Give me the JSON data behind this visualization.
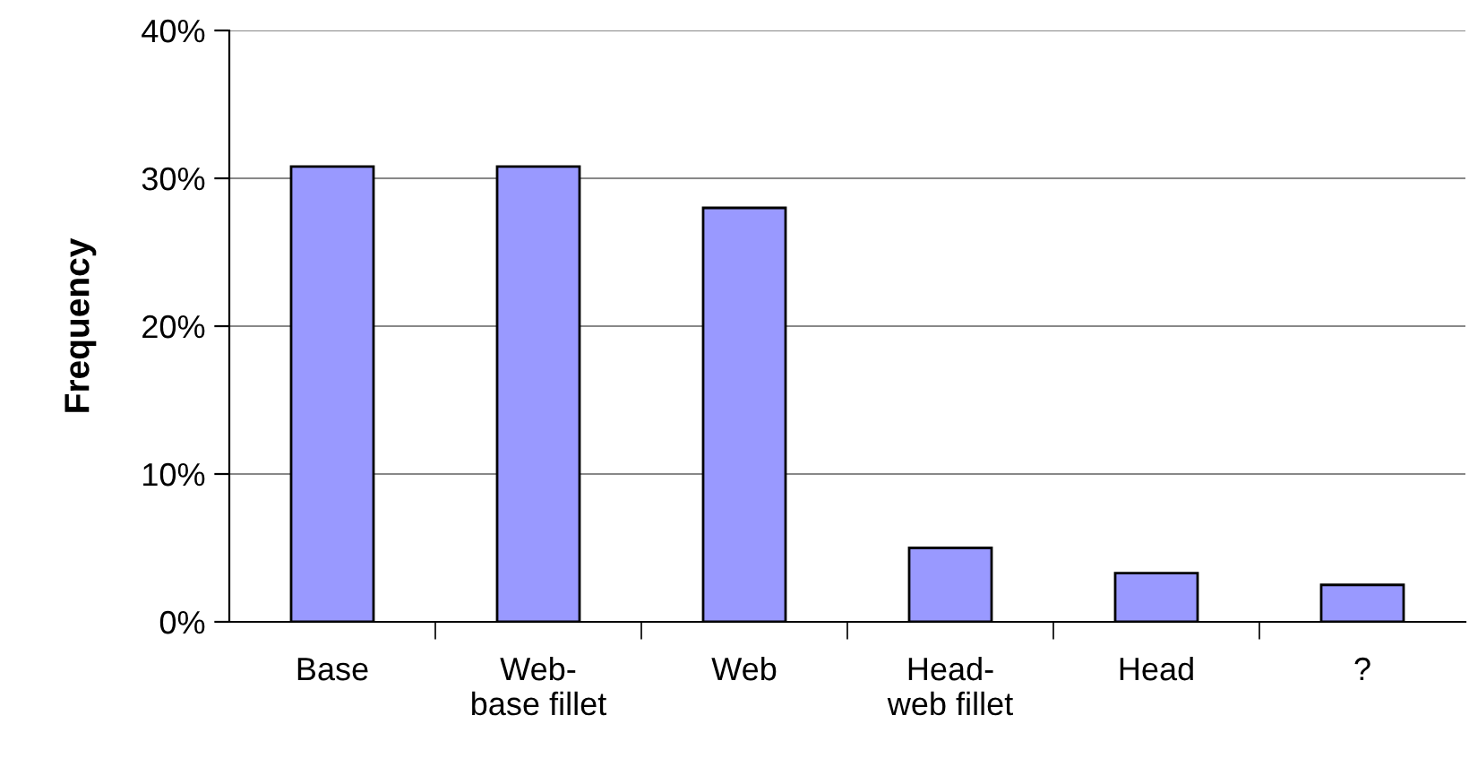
{
  "chart_data": {
    "type": "bar",
    "ylabel": "Frequency",
    "categories": [
      "Base",
      "Web-\nbase fillet",
      "Web",
      "Head-\nweb fillet",
      "Head",
      "?"
    ],
    "values": [
      30.8,
      30.8,
      28,
      5,
      3.3,
      2.5
    ],
    "color": "#9999ff",
    "ylim": [
      0,
      40
    ],
    "yticks": [
      {
        "value": 0,
        "label": "0%"
      },
      {
        "value": 10,
        "label": "10%"
      },
      {
        "value": 20,
        "label": "20%"
      },
      {
        "value": 30,
        "label": "30%"
      },
      {
        "value": 40,
        "label": "40%"
      }
    ],
    "grid": "y"
  }
}
